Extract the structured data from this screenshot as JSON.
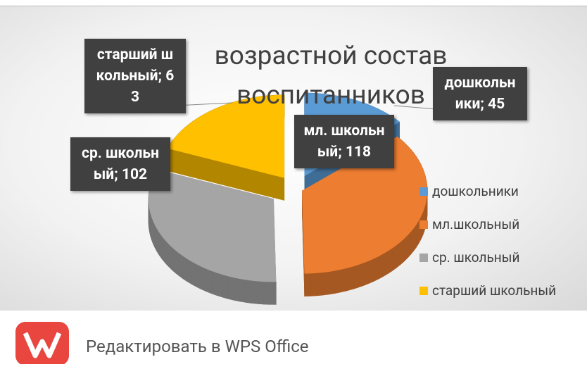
{
  "chart_data": {
    "type": "pie",
    "title": "возрастной состав воспитанников",
    "categories": [
      "дошкольники",
      "мл.школьный",
      "ср. школьный",
      "старший школьный"
    ],
    "values": [
      45,
      118,
      102,
      63
    ],
    "value_labels": [
      "дошкольники; 45",
      "мл. школьный; 118",
      "ср. школьный; 102",
      "старший школьный; 63"
    ],
    "colors": [
      "#5b9bd5",
      "#ed7d31",
      "#a5a5a5",
      "#ffc000"
    ],
    "legend": "right"
  },
  "overlay": {
    "button": "Редактировать в WPS Office"
  }
}
